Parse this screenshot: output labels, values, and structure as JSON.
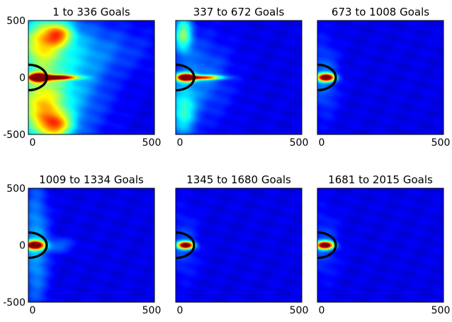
{
  "chart_data": {
    "type": "heatmap",
    "colormap": "jet",
    "background_color": "#0a23b4",
    "hotspot_color": "#b00000",
    "arc_color": "#000000",
    "xlim": [
      0,
      500
    ],
    "ylim": [
      -500,
      500
    ],
    "panels": [
      {
        "title": "1 to 336 Goals",
        "xticks": [
          "0",
          "500"
        ],
        "yticks": [
          "500",
          "0",
          "-500"
        ],
        "hotspots": [
          {
            "x": 40,
            "y": 0,
            "sx": 25,
            "sy": 25,
            "v": 1.0
          },
          {
            "x": 110,
            "y": 0,
            "sx": 55,
            "sy": 14,
            "v": 0.8
          },
          {
            "x": 45,
            "y": 300,
            "sx": 60,
            "sy": 160,
            "v": 0.42
          },
          {
            "x": 45,
            "y": -260,
            "sx": 70,
            "sy": 190,
            "v": 0.45
          },
          {
            "x": 120,
            "y": 380,
            "sx": 40,
            "sy": 70,
            "v": 0.4
          },
          {
            "x": 110,
            "y": -420,
            "sx": 45,
            "sy": 80,
            "v": 0.4
          },
          {
            "x": 150,
            "y": 0,
            "sx": 110,
            "sy": 380,
            "v": 0.22
          },
          {
            "x": 320,
            "y": 250,
            "sx": 140,
            "sy": 150,
            "v": 0.08
          }
        ]
      },
      {
        "title": "337 to 672 Goals",
        "xticks": [
          "0",
          "500"
        ],
        "yticks": [],
        "hotspots": [
          {
            "x": 40,
            "y": 0,
            "sx": 25,
            "sy": 25,
            "v": 1.0
          },
          {
            "x": 110,
            "y": 0,
            "sx": 50,
            "sy": 14,
            "v": 0.65
          },
          {
            "x": 30,
            "y": 380,
            "sx": 25,
            "sy": 110,
            "v": 0.38
          },
          {
            "x": 30,
            "y": -300,
            "sx": 35,
            "sy": 160,
            "v": 0.28
          },
          {
            "x": 100,
            "y": 0,
            "sx": 80,
            "sy": 250,
            "v": 0.14
          }
        ]
      },
      {
        "title": "673 to 1008 Goals",
        "xticks": [
          "0",
          "500"
        ],
        "yticks": [],
        "hotspots": [
          {
            "x": 35,
            "y": 0,
            "sx": 24,
            "sy": 24,
            "v": 1.0
          },
          {
            "x": 25,
            "y": 0,
            "sx": 40,
            "sy": 220,
            "v": 0.14
          }
        ]
      },
      {
        "title": "1009 to 1334 Goals",
        "xticks": [
          "0",
          "500"
        ],
        "yticks": [
          "500",
          "0",
          "-500"
        ],
        "hotspots": [
          {
            "x": 25,
            "y": 0,
            "sx": 26,
            "sy": 26,
            "v": 1.0
          },
          {
            "x": 30,
            "y": 0,
            "sx": 35,
            "sy": 380,
            "v": 0.2
          },
          {
            "x": 120,
            "y": 0,
            "sx": 45,
            "sy": 45,
            "v": 0.12
          }
        ]
      },
      {
        "title": "1345 to 1680 Goals",
        "xticks": [
          "0",
          "500"
        ],
        "yticks": [],
        "hotspots": [
          {
            "x": 40,
            "y": 0,
            "sx": 22,
            "sy": 22,
            "v": 1.0
          },
          {
            "x": 30,
            "y": 0,
            "sx": 40,
            "sy": 200,
            "v": 0.1
          }
        ]
      },
      {
        "title": "1681 to 2015 Goals",
        "xticks": [
          "0",
          "500"
        ],
        "yticks": [],
        "hotspots": [
          {
            "x": 30,
            "y": 0,
            "sx": 24,
            "sy": 24,
            "v": 1.0
          },
          {
            "x": 25,
            "y": 0,
            "sx": 40,
            "sy": 200,
            "v": 0.1
          }
        ]
      }
    ]
  }
}
